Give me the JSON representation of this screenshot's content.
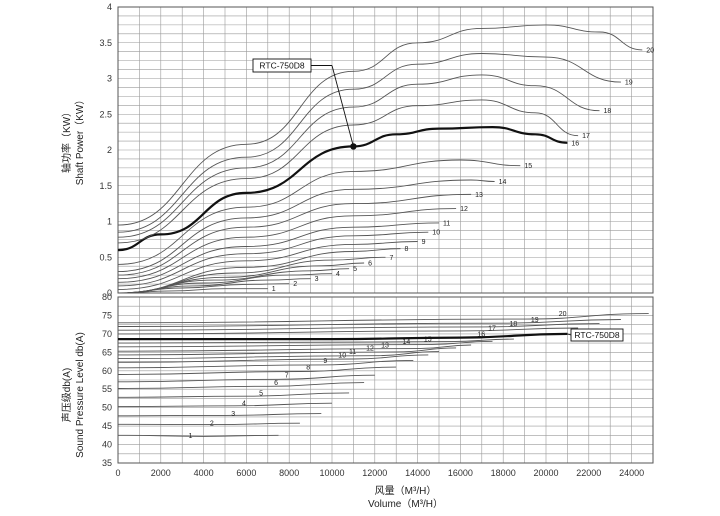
{
  "chart_data": [
    {
      "type": "line",
      "ylabel_cn": "轴功率（KW）",
      "ylabel": "Shaft Power（KW）",
      "xlim": [
        0,
        25000
      ],
      "ylim": [
        0,
        4
      ],
      "yticks": [
        "0",
        "0.5",
        "1",
        "1.5",
        "2",
        "2.5",
        "3",
        "3.5",
        "4"
      ],
      "grid": true,
      "callout": {
        "text": "RTC-750D8",
        "series": "16",
        "x": 11000,
        "y": 2.05
      },
      "series": [
        {
          "name": "1",
          "highlight": false,
          "points": [
            [
              0,
              0
            ],
            [
              2500,
              0.03
            ],
            [
              5000,
              0.06
            ],
            [
              7000,
              0.06
            ]
          ]
        },
        {
          "name": "2",
          "highlight": false,
          "points": [
            [
              0,
              0
            ],
            [
              3000,
              0.07
            ],
            [
              6000,
              0.12
            ],
            [
              8000,
              0.13
            ]
          ]
        },
        {
          "name": "3",
          "highlight": false,
          "points": [
            [
              0,
              0
            ],
            [
              3500,
              0.1
            ],
            [
              7000,
              0.18
            ],
            [
              9000,
              0.2
            ]
          ]
        },
        {
          "name": "4",
          "highlight": false,
          "points": [
            [
              0,
              0
            ],
            [
              4000,
              0.14
            ],
            [
              8000,
              0.25
            ],
            [
              10000,
              0.27
            ]
          ]
        },
        {
          "name": "5",
          "highlight": false,
          "points": [
            [
              0,
              0
            ],
            [
              4500,
              0.18
            ],
            [
              9000,
              0.31
            ],
            [
              10800,
              0.34
            ]
          ]
        },
        {
          "name": "6",
          "highlight": false,
          "points": [
            [
              0,
              0
            ],
            [
              5000,
              0.22
            ],
            [
              9500,
              0.38
            ],
            [
              11500,
              0.42
            ]
          ]
        },
        {
          "name": "7",
          "highlight": false,
          "points": [
            [
              0,
              0
            ],
            [
              5500,
              0.28
            ],
            [
              10000,
              0.46
            ],
            [
              12500,
              0.5
            ]
          ]
        },
        {
          "name": "8",
          "highlight": false,
          "points": [
            [
              0,
              0
            ],
            [
              6000,
              0.36
            ],
            [
              11000,
              0.58
            ],
            [
              13200,
              0.62
            ]
          ]
        },
        {
          "name": "9",
          "highlight": false,
          "points": [
            [
              0,
              0.05
            ],
            [
              6000,
              0.45
            ],
            [
              11000,
              0.68
            ],
            [
              14000,
              0.72
            ]
          ]
        },
        {
          "name": "10",
          "highlight": false,
          "points": [
            [
              0,
              0.1
            ],
            [
              6000,
              0.55
            ],
            [
              11000,
              0.8
            ],
            [
              14500,
              0.85
            ]
          ]
        },
        {
          "name": "11",
          "highlight": false,
          "points": [
            [
              0,
              0.15
            ],
            [
              6000,
              0.65
            ],
            [
              11000,
              0.92
            ],
            [
              15000,
              0.98
            ]
          ]
        },
        {
          "name": "12",
          "highlight": false,
          "points": [
            [
              0,
              0.2
            ],
            [
              6000,
              0.78
            ],
            [
              11000,
              1.08
            ],
            [
              15800,
              1.18
            ]
          ]
        },
        {
          "name": "13",
          "highlight": false,
          "points": [
            [
              0,
              0.25
            ],
            [
              6000,
              0.92
            ],
            [
              11000,
              1.25
            ],
            [
              16500,
              1.38
            ]
          ]
        },
        {
          "name": "14",
          "highlight": false,
          "points": [
            [
              0,
              0.3
            ],
            [
              6000,
              1.05
            ],
            [
              11000,
              1.45
            ],
            [
              16500,
              1.58
            ],
            [
              17600,
              1.56
            ]
          ]
        },
        {
          "name": "15",
          "highlight": false,
          "points": [
            [
              0,
              0.4
            ],
            [
              6000,
              1.2
            ],
            [
              11000,
              1.7
            ],
            [
              16000,
              1.86
            ],
            [
              18800,
              1.78
            ]
          ]
        },
        {
          "name": "16",
          "highlight": true,
          "points": [
            [
              0,
              0.6
            ],
            [
              2000,
              0.82
            ],
            [
              6000,
              1.4
            ],
            [
              11000,
              2.05
            ],
            [
              13000,
              2.22
            ],
            [
              15000,
              2.3
            ],
            [
              17500,
              2.32
            ],
            [
              19500,
              2.22
            ],
            [
              21000,
              2.1
            ]
          ]
        },
        {
          "name": "17",
          "highlight": false,
          "points": [
            [
              0,
              0.7
            ],
            [
              6000,
              1.6
            ],
            [
              11000,
              2.35
            ],
            [
              14000,
              2.62
            ],
            [
              17000,
              2.7
            ],
            [
              19500,
              2.52
            ],
            [
              21500,
              2.2
            ]
          ]
        },
        {
          "name": "18",
          "highlight": false,
          "points": [
            [
              0,
              0.78
            ],
            [
              6000,
              1.75
            ],
            [
              11000,
              2.6
            ],
            [
              14000,
              2.92
            ],
            [
              17000,
              3.05
            ],
            [
              19500,
              2.9
            ],
            [
              22500,
              2.55
            ]
          ]
        },
        {
          "name": "19",
          "highlight": false,
          "points": [
            [
              0,
              0.85
            ],
            [
              6000,
              1.9
            ],
            [
              11000,
              2.85
            ],
            [
              14000,
              3.2
            ],
            [
              17000,
              3.35
            ],
            [
              20000,
              3.3
            ],
            [
              23500,
              2.95
            ]
          ]
        },
        {
          "name": "20",
          "highlight": false,
          "points": [
            [
              0,
              0.95
            ],
            [
              6000,
              2.08
            ],
            [
              11000,
              3.1
            ],
            [
              14000,
              3.5
            ],
            [
              17000,
              3.7
            ],
            [
              20000,
              3.75
            ],
            [
              22500,
              3.65
            ],
            [
              24500,
              3.4
            ]
          ]
        }
      ]
    },
    {
      "type": "line",
      "ylabel_cn": "声压级db(A)",
      "ylabel": "Sound Pressure Level db(A)",
      "xlabel_cn": "风量（M³/H）",
      "xlabel": "Volume（M³/H）",
      "xlim": [
        0,
        25000
      ],
      "ylim": [
        35,
        80
      ],
      "xticks": [
        "0",
        "2000",
        "4000",
        "6000",
        "8000",
        "10000",
        "12000",
        "14000",
        "16000",
        "18000",
        "20000",
        "22000",
        "24000"
      ],
      "yticks": [
        "35",
        "40",
        "45",
        "50",
        "55",
        "60",
        "65",
        "70",
        "75",
        "80"
      ],
      "grid": true,
      "callout": {
        "text": "RTC-750D8",
        "series": "16"
      },
      "series": [
        {
          "name": "1",
          "highlight": false,
          "points": [
            [
              0,
              42.5
            ],
            [
              4000,
              42.2
            ],
            [
              7500,
              42.5
            ]
          ]
        },
        {
          "name": "2",
          "highlight": false,
          "points": [
            [
              0,
              45.5
            ],
            [
              4500,
              45.4
            ],
            [
              8500,
              45.8
            ]
          ]
        },
        {
          "name": "3",
          "highlight": false,
          "points": [
            [
              0,
              47.8
            ],
            [
              5000,
              47.9
            ],
            [
              9500,
              48.4
            ]
          ]
        },
        {
          "name": "4",
          "highlight": false,
          "points": [
            [
              0,
              50.3
            ],
            [
              5500,
              50.5
            ],
            [
              10000,
              51.2
            ]
          ]
        },
        {
          "name": "5",
          "highlight": false,
          "points": [
            [
              0,
              52.8
            ],
            [
              6000,
              53.1
            ],
            [
              10800,
              54.0
            ]
          ]
        },
        {
          "name": "6",
          "highlight": false,
          "points": [
            [
              0,
              55.2
            ],
            [
              7000,
              55.8
            ],
            [
              11500,
              56.8
            ]
          ]
        },
        {
          "name": "7",
          "highlight": false,
          "points": [
            [
              0,
              57.0
            ],
            [
              7500,
              57.7
            ],
            [
              12000,
              58.8
            ]
          ]
        },
        {
          "name": "8",
          "highlight": false,
          "points": [
            [
              0,
              59.0
            ],
            [
              8500,
              59.8
            ],
            [
              13000,
              61.0
            ]
          ]
        },
        {
          "name": "9",
          "highlight": false,
          "points": [
            [
              0,
              60.8
            ],
            [
              9500,
              61.6
            ],
            [
              13800,
              62.8
            ]
          ]
        },
        {
          "name": "10",
          "highlight": false,
          "points": [
            [
              0,
              62.3
            ],
            [
              11000,
              63.2
            ],
            [
              14500,
              64.3
            ]
          ]
        },
        {
          "name": "11",
          "highlight": false,
          "points": [
            [
              0,
              63.3
            ],
            [
              12000,
              64.1
            ],
            [
              15000,
              65.2
            ]
          ]
        },
        {
          "name": "12",
          "highlight": false,
          "points": [
            [
              0,
              64.3
            ],
            [
              13000,
              65.1
            ],
            [
              15800,
              66.2
            ]
          ]
        },
        {
          "name": "13",
          "highlight": false,
          "points": [
            [
              0,
              65.3
            ],
            [
              14000,
              66.0
            ],
            [
              16500,
              67.0
            ]
          ]
        },
        {
          "name": "14",
          "highlight": false,
          "points": [
            [
              0,
              66.5
            ],
            [
              14500,
              67.1
            ],
            [
              17500,
              68.0
            ]
          ]
        },
        {
          "name": "15",
          "highlight": false,
          "points": [
            [
              0,
              67.5
            ],
            [
              15500,
              67.9
            ],
            [
              18500,
              68.6
            ]
          ]
        },
        {
          "name": "16",
          "highlight": true,
          "points": [
            [
              0,
              68.6
            ],
            [
              10000,
              68.6
            ],
            [
              16000,
              69.0
            ],
            [
              21000,
              70.0
            ]
          ]
        },
        {
          "name": "17",
          "highlight": false,
          "points": [
            [
              0,
              70.0
            ],
            [
              16000,
              70.8
            ],
            [
              21500,
              71.6
            ]
          ]
        },
        {
          "name": "18",
          "highlight": false,
          "points": [
            [
              0,
              71.0
            ],
            [
              17000,
              71.9
            ],
            [
              22500,
              72.8
            ]
          ]
        },
        {
          "name": "19",
          "highlight": false,
          "points": [
            [
              0,
              72.0
            ],
            [
              18000,
              72.9
            ],
            [
              23500,
              73.9
            ]
          ]
        },
        {
          "name": "20",
          "highlight": false,
          "points": [
            [
              0,
              73.0
            ],
            [
              19000,
              74.0
            ],
            [
              24800,
              75.5
            ]
          ]
        }
      ]
    }
  ]
}
